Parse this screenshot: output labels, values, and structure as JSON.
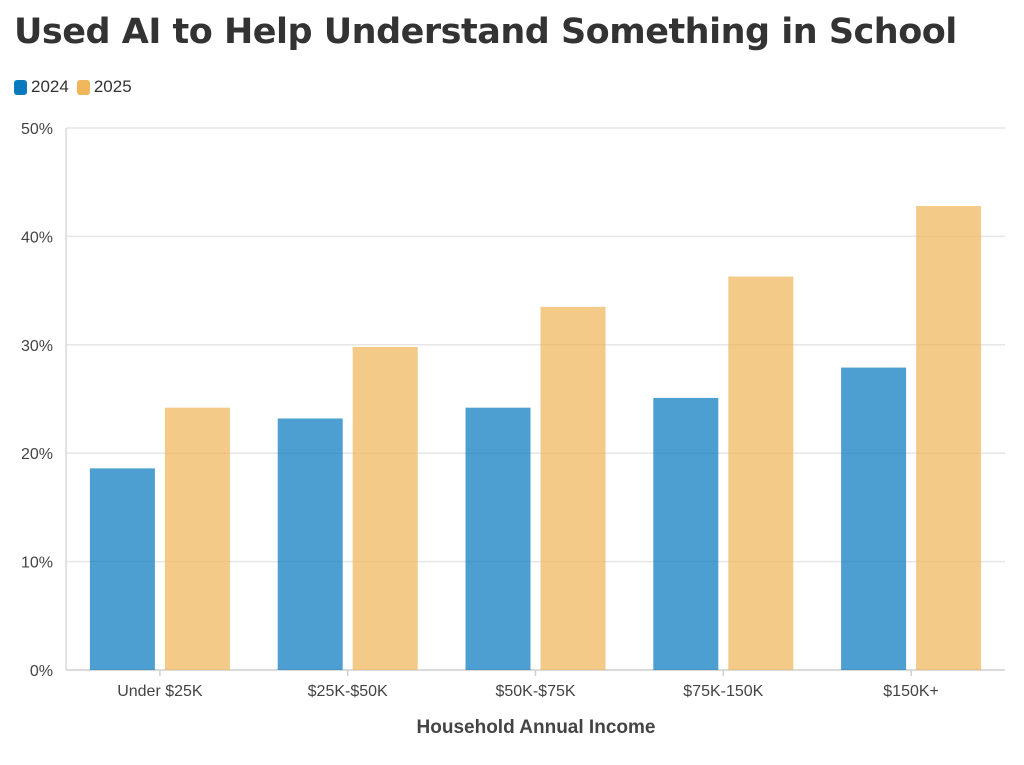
{
  "chart_data": {
    "type": "bar",
    "title": "Used AI to Help Understand Something in School",
    "xlabel": "Household Annual Income",
    "ylabel": "",
    "categories": [
      "Under $25K",
      "$25K-$50K",
      "$50K-$75K",
      "$75K-150K",
      "$150K+"
    ],
    "series": [
      {
        "name": "2024",
        "color": "#0a7abf",
        "values": [
          18.6,
          23.2,
          24.2,
          25.1,
          27.9
        ]
      },
      {
        "name": "2025",
        "color": "#f0b65b",
        "values": [
          24.2,
          29.8,
          33.5,
          36.3,
          42.8
        ]
      }
    ],
    "ylim": [
      0,
      50
    ],
    "yticks": [
      0,
      10,
      20,
      30,
      40,
      50
    ],
    "ytick_labels": [
      "0%",
      "10%",
      "20%",
      "30%",
      "40%",
      "50%"
    ],
    "grid": true,
    "legend_position": "top-left"
  }
}
